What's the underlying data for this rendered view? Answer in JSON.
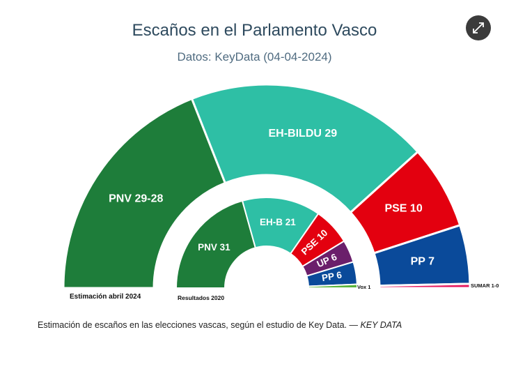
{
  "header": {
    "title": "Escaños en el Parlamento Vasco",
    "subtitle": "Datos: KeyData (04-04-2024)"
  },
  "controls": {
    "expand_icon": "expand-arrows-icon"
  },
  "caption": {
    "text": "Estimación de escaños en las elecciones vascas, según el estudio de Key Data. — ",
    "credit": "KEY DATA"
  },
  "chart_data": [
    {
      "type": "pie",
      "variant": "half-donut (parliament)",
      "label": "Estimación abril 2024",
      "total_seats": 75,
      "series": [
        {
          "name": "PNV",
          "label": "PNV 29-28",
          "seats": 28.5,
          "color": "#1e7d3a"
        },
        {
          "name": "EH-BILDU",
          "label": "EH-BILDU 29",
          "seats": 29,
          "color": "#2ebfa5"
        },
        {
          "name": "PSE",
          "label": "PSE 10",
          "seats": 10,
          "color": "#e3000f"
        },
        {
          "name": "PP",
          "label": "PP 7",
          "seats": 7,
          "color": "#0a4a9a"
        },
        {
          "name": "SUMAR",
          "label": "SUMAR 1-0",
          "seats": 0.5,
          "color": "#e5195f"
        }
      ]
    },
    {
      "type": "pie",
      "variant": "half-donut (parliament)",
      "label": "Resultados 2020",
      "total_seats": 75,
      "series": [
        {
          "name": "PNV",
          "label": "PNV 31",
          "seats": 31,
          "color": "#1e7d3a"
        },
        {
          "name": "EH-B",
          "label": "EH-B 21",
          "seats": 21,
          "color": "#2ebfa5"
        },
        {
          "name": "PSE",
          "label": "PSE 10",
          "seats": 10,
          "color": "#e3000f"
        },
        {
          "name": "UP",
          "label": "UP 6",
          "seats": 6,
          "color": "#6b1f6b"
        },
        {
          "name": "PP",
          "label": "PP 6",
          "seats": 6,
          "color": "#0a4a9a"
        },
        {
          "name": "Vox",
          "label": "Vox 1",
          "seats": 1,
          "color": "#5ab43c"
        }
      ]
    }
  ]
}
